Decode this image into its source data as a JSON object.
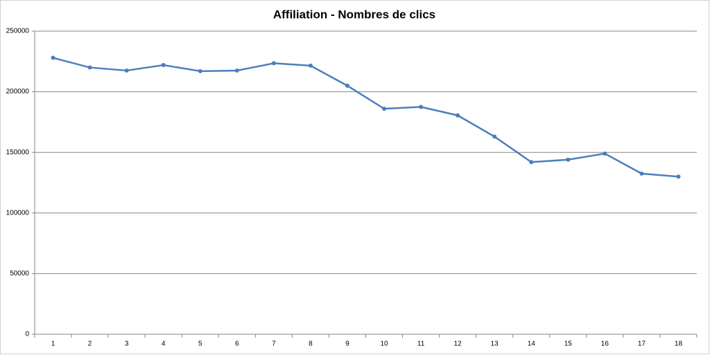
{
  "chart_data": {
    "type": "line",
    "title": "Affiliation - Nombres de clics",
    "categories": [
      "1",
      "2",
      "3",
      "4",
      "5",
      "6",
      "7",
      "8",
      "9",
      "10",
      "11",
      "12",
      "13",
      "14",
      "15",
      "16",
      "17",
      "18"
    ],
    "values": [
      228000,
      220000,
      217500,
      222000,
      217000,
      217500,
      223500,
      221500,
      205000,
      186000,
      187500,
      180500,
      163000,
      142000,
      144000,
      149000,
      132500,
      130000
    ],
    "color": "#4a7ebb",
    "ylim": [
      0,
      250000
    ],
    "yticks": [
      0,
      50000,
      100000,
      150000,
      200000,
      250000
    ],
    "grid": true
  }
}
